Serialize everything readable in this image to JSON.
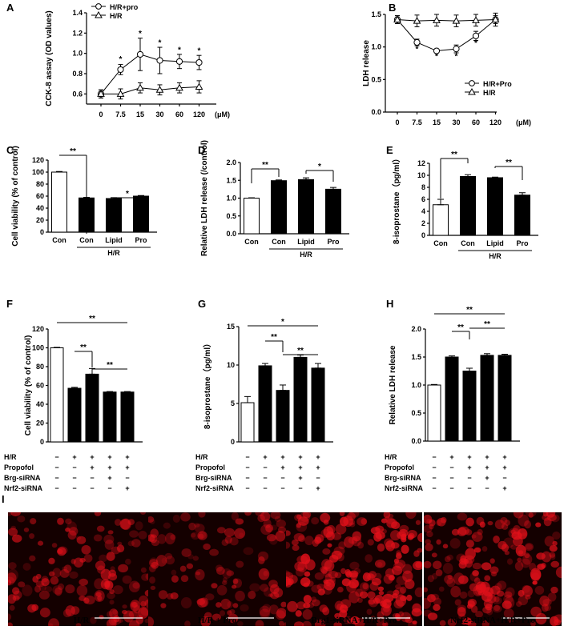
{
  "panel_letters": [
    "A",
    "B",
    "C",
    "D",
    "E",
    "F",
    "G",
    "H",
    "I"
  ],
  "chart_data": [
    {
      "id": "A",
      "type": "line",
      "categories": [
        "0",
        "7.5",
        "15",
        "30",
        "60",
        "120"
      ],
      "x_unit": "(μM)",
      "ylabel": "CCK-8 assay (OD values)",
      "ylim": [
        0.5,
        1.4
      ],
      "yticks": [
        "0.6",
        "0.8",
        "1.0",
        "1.2",
        "1.4"
      ],
      "legend_position": "top-left",
      "series": [
        {
          "name": "H/R+pro",
          "marker": "circle",
          "values": [
            0.6,
            0.84,
            0.99,
            0.93,
            0.92,
            0.91
          ],
          "errors": [
            0.04,
            0.05,
            0.16,
            0.13,
            0.07,
            0.07
          ]
        },
        {
          "name": "H/R",
          "marker": "triangle",
          "values": [
            0.6,
            0.6,
            0.66,
            0.64,
            0.66,
            0.67
          ],
          "errors": [
            0.04,
            0.05,
            0.05,
            0.05,
            0.05,
            0.06
          ]
        }
      ],
      "annotations": [
        "*",
        "*",
        "*",
        "*",
        "*"
      ]
    },
    {
      "id": "B",
      "type": "line",
      "categories": [
        "0",
        "7.5",
        "15",
        "30",
        "60",
        "120"
      ],
      "x_unit": "(μM)",
      "ylabel": "LDH release",
      "ylim": [
        0.0,
        1.5
      ],
      "yticks": [
        "0.0",
        "0.5",
        "1.0",
        "1.5"
      ],
      "legend_position": "bottom-right",
      "series": [
        {
          "name": "H/R+Pro",
          "marker": "circle",
          "values": [
            1.42,
            1.07,
            0.94,
            0.97,
            1.17,
            1.42
          ],
          "errors": [
            0.06,
            0.05,
            0.03,
            0.06,
            0.07,
            0.06
          ]
        },
        {
          "name": "H/R",
          "marker": "triangle",
          "values": [
            1.42,
            1.4,
            1.41,
            1.4,
            1.41,
            1.42
          ],
          "errors": [
            0.06,
            0.09,
            0.09,
            0.09,
            0.09,
            0.1
          ]
        }
      ],
      "annotations": [
        "*",
        "*",
        "*",
        "*"
      ]
    },
    {
      "id": "C",
      "type": "bar",
      "categories": [
        "Con",
        "Con",
        "Lipid",
        "Pro"
      ],
      "group_label": "H/R",
      "ylabel": "Cell viability (% of control)",
      "ylim": [
        0,
        120
      ],
      "yticks": [
        "0",
        "20",
        "40",
        "60",
        "80",
        "100",
        "120"
      ],
      "values": [
        100,
        57,
        56,
        60
      ],
      "errors": [
        1,
        1,
        1.5,
        1
      ],
      "fills": [
        "#ffffff",
        "#000000",
        "#000000",
        "#000000"
      ],
      "significance": [
        "**",
        "*"
      ]
    },
    {
      "id": "D",
      "type": "bar",
      "categories": [
        "Con",
        "Con",
        "Lipid",
        "Pro"
      ],
      "group_label": "H/R",
      "ylabel": "Relative LDH release (/control)",
      "ylim": [
        0.0,
        2.0
      ],
      "yticks": [
        "0.0",
        "0.5",
        "1.0",
        "1.5",
        "2.0"
      ],
      "values": [
        1.0,
        1.49,
        1.52,
        1.25
      ],
      "errors": [
        0.01,
        0.02,
        0.05,
        0.05
      ],
      "fills": [
        "#ffffff",
        "#000000",
        "#000000",
        "#000000"
      ],
      "significance": [
        "**",
        "*"
      ]
    },
    {
      "id": "E",
      "type": "bar",
      "categories": [
        "Con",
        "Con",
        "Lipid",
        "Pro"
      ],
      "group_label": "H/R",
      "ylabel": "8-isoprostane（pg/ml）",
      "ylim": [
        0,
        12
      ],
      "yticks": [
        "0",
        "2",
        "4",
        "6",
        "8",
        "10",
        "12"
      ],
      "values": [
        5.1,
        9.8,
        9.6,
        6.7
      ],
      "errors": [
        0.9,
        0.3,
        0.1,
        0.4
      ],
      "fills": [
        "#ffffff",
        "#000000",
        "#000000",
        "#000000"
      ],
      "significance": [
        "**",
        "**"
      ]
    },
    {
      "id": "F",
      "type": "bar",
      "ylabel": "Cell viability (% of control)",
      "ylim": [
        0,
        120
      ],
      "yticks": [
        "0",
        "20",
        "40",
        "60",
        "80",
        "100",
        "120"
      ],
      "values": [
        100,
        57,
        72,
        53,
        53
      ],
      "errors": [
        0.5,
        1,
        6,
        0.5,
        0.5
      ],
      "fills": [
        "#ffffff",
        "#000000",
        "#000000",
        "#000000",
        "#000000"
      ],
      "significance": [
        "**",
        "**",
        "**"
      ]
    },
    {
      "id": "G",
      "type": "bar",
      "ylabel": "8-isoprostane（pg/ml）",
      "ylim": [
        0,
        15
      ],
      "yticks": [
        "0",
        "5",
        "10",
        "15"
      ],
      "values": [
        5.1,
        9.9,
        6.7,
        11.0,
        9.6
      ],
      "errors": [
        0.8,
        0.3,
        0.7,
        0.3,
        0.6
      ],
      "fills": [
        "#ffffff",
        "#000000",
        "#000000",
        "#000000",
        "#000000"
      ],
      "significance": [
        "*",
        "**",
        "**"
      ]
    },
    {
      "id": "H",
      "type": "bar",
      "ylabel": "Relative LDH release",
      "ylim": [
        0.0,
        2.0
      ],
      "yticks": [
        "0.0",
        "0.5",
        "1.0",
        "1.5",
        "2.0"
      ],
      "values": [
        1.0,
        1.5,
        1.25,
        1.53,
        1.53
      ],
      "errors": [
        0.01,
        0.02,
        0.05,
        0.03,
        0.02
      ],
      "fills": [
        "#ffffff",
        "#000000",
        "#000000",
        "#000000",
        "#000000"
      ],
      "significance": [
        "**",
        "**",
        "**"
      ]
    }
  ],
  "treatment_table": {
    "rows": [
      {
        "label": "H/R",
        "marks": [
          "−",
          "+",
          "+",
          "+",
          "+"
        ]
      },
      {
        "label": "Propofol",
        "marks": [
          "−",
          "−",
          "+",
          "+",
          "+"
        ]
      },
      {
        "label": "Brg-siRNA",
        "marks": [
          "−",
          "−",
          "−",
          "+",
          "−"
        ]
      },
      {
        "label": "Nrf2-siRNA",
        "marks": [
          "−",
          "−",
          "−",
          "−",
          "+"
        ]
      }
    ]
  },
  "micrographs": [
    {
      "caption": "H/R",
      "intensity": 0.55
    },
    {
      "caption": "H/R + Pro",
      "intensity": 0.4
    },
    {
      "caption": "Brg1-siRNA+H/R+Pro",
      "intensity": 0.95
    },
    {
      "caption": "Nrf2-siRNA+H/R+Pro",
      "intensity": 0.8
    }
  ],
  "colors": {
    "fluorescence": "#e3101a",
    "background": "#140000",
    "scalebar": "#ffffff"
  }
}
